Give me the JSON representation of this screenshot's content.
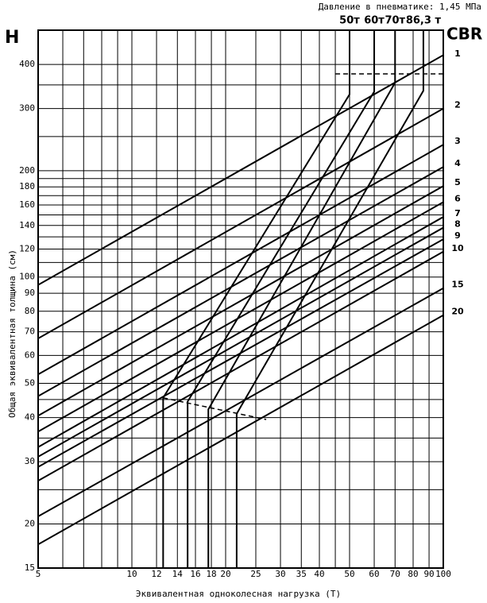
{
  "chart_data": {
    "type": "line",
    "title": "Давление в пневматике: 1,45 МПа",
    "xlabel": "Эквивалентная одноколесная нагрузка (Т)",
    "ylabel": "Общая эквивалентная толщина (см)",
    "y_axis_title": "H",
    "cbr_title": "CBR",
    "log_x": true,
    "log_y": true,
    "grid": true,
    "xlim": [
      5,
      100
    ],
    "ylim": [
      15,
      500
    ],
    "xticks": [
      5,
      10,
      12,
      14,
      16,
      18,
      20,
      25,
      30,
      35,
      40,
      50,
      60,
      70,
      80,
      90,
      100
    ],
    "yticks": [
      15,
      20,
      30,
      40,
      50,
      60,
      70,
      80,
      90,
      100,
      120,
      140,
      160,
      180,
      200,
      300,
      400
    ],
    "xgrid_minor": [
      6,
      7,
      8,
      9,
      45
    ],
    "ygrid_minor": [
      25,
      35,
      45,
      110,
      130,
      150,
      170,
      190,
      250,
      350
    ],
    "cbr_series": [
      {
        "name": "1",
        "x": [
          5,
          100
        ],
        "values": [
          95,
          425
        ]
      },
      {
        "name": "2",
        "x": [
          5,
          100
        ],
        "values": [
          67,
          300
        ]
      },
      {
        "name": "3",
        "x": [
          5,
          100
        ],
        "values": [
          53,
          237
        ]
      },
      {
        "name": "4",
        "x": [
          5,
          100
        ],
        "values": [
          46,
          205
        ]
      },
      {
        "name": "5",
        "x": [
          5,
          100
        ],
        "values": [
          40.5,
          181
        ]
      },
      {
        "name": "6",
        "x": [
          5,
          100
        ],
        "values": [
          36.5,
          163
        ]
      },
      {
        "name": "7",
        "x": [
          5,
          100
        ],
        "values": [
          33,
          148
        ]
      },
      {
        "name": "8",
        "x": [
          5,
          100
        ],
        "values": [
          31,
          138
        ]
      },
      {
        "name": "9",
        "x": [
          5,
          100
        ],
        "values": [
          29,
          128
        ]
      },
      {
        "name": "10",
        "x": [
          5,
          100
        ],
        "values": [
          26.5,
          118
        ]
      },
      {
        "name": "15",
        "x": [
          5,
          100
        ],
        "values": [
          21,
          93
        ]
      },
      {
        "name": "20",
        "x": [
          5,
          100
        ],
        "values": [
          17.5,
          78
        ]
      }
    ],
    "load_series": [
      {
        "name": "50т",
        "x": [
          50,
          50,
          12.6,
          12.6
        ],
        "values": [
          500,
          329,
          45.5,
          15
        ]
      },
      {
        "name": "60т",
        "x": [
          60,
          60,
          15.1,
          15.1
        ],
        "values": [
          500,
          335,
          44.4,
          15
        ]
      },
      {
        "name": "70т",
        "x": [
          70,
          70,
          17.6,
          17.6
        ],
        "values": [
          500,
          355,
          42.2,
          15
        ]
      },
      {
        "name": "86,3 т",
        "x": [
          86.3,
          86.3,
          21.7,
          21.7
        ],
        "values": [
          500,
          337,
          41,
          15
        ]
      }
    ],
    "reference_lines": [
      {
        "x": [
          45,
          100
        ],
        "values": [
          376,
          376
        ]
      },
      {
        "x": [
          12.6,
          27
        ],
        "values": [
          45.5,
          39.5
        ]
      }
    ],
    "color": "#000000"
  }
}
